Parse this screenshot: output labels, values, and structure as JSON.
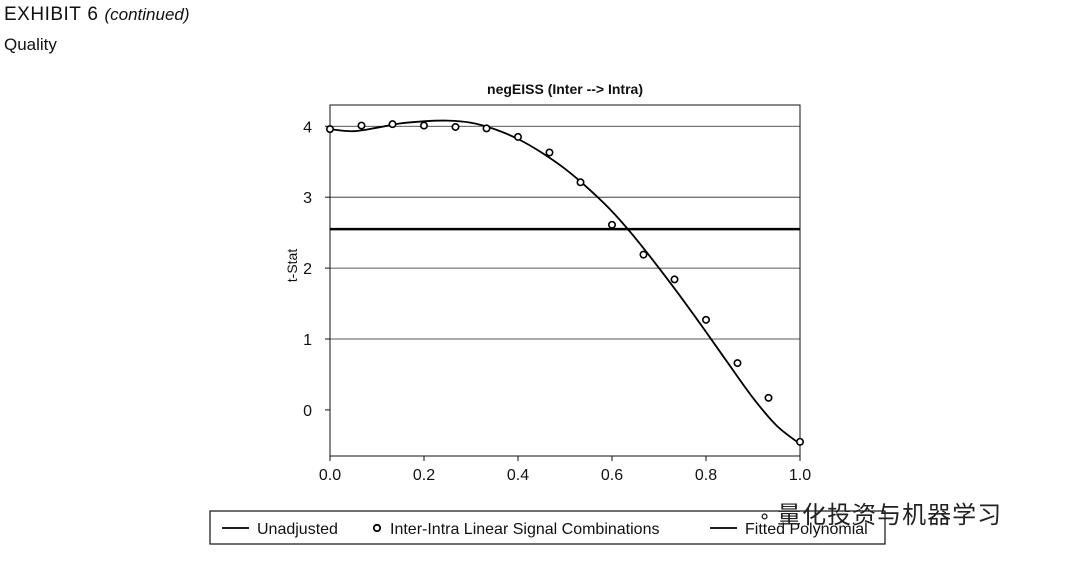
{
  "header": {
    "exhibit_label": "EXHIBIT",
    "exhibit_number": "6",
    "continued": "(continued)",
    "section": "Quality"
  },
  "watermark": {
    "text": "量化投资与机器学习",
    "icon": "wechat-icon"
  },
  "chart_data": {
    "type": "scatter",
    "title": "negEISS (Inter --> Intra)",
    "xlabel": "",
    "ylabel": "t-Stat",
    "xlim": [
      0.0,
      1.0
    ],
    "ylim": [
      -0.65,
      4.3
    ],
    "x_ticks": [
      "0.0",
      "0.2",
      "0.4",
      "0.6",
      "0.8",
      "1.0"
    ],
    "y_ticks": [
      "0",
      "1",
      "2",
      "3",
      "4"
    ],
    "grid": true,
    "legend_position": "bottom",
    "unadjusted": 2.55,
    "series": [
      {
        "name": "Inter-Intra Linear Signal Combinations",
        "x": [
          0.0,
          0.067,
          0.133,
          0.2,
          0.267,
          0.333,
          0.4,
          0.467,
          0.533,
          0.6,
          0.667,
          0.733,
          0.8,
          0.867,
          0.933,
          1.0
        ],
        "y": [
          3.96,
          4.01,
          4.03,
          4.01,
          3.99,
          3.97,
          3.85,
          3.63,
          3.21,
          2.61,
          2.19,
          1.84,
          1.27,
          0.66,
          0.17,
          -0.45
        ]
      }
    ],
    "fitted": {
      "x": [
        0.0,
        0.05,
        0.1,
        0.15,
        0.2,
        0.25,
        0.3,
        0.35,
        0.4,
        0.45,
        0.5,
        0.55,
        0.6,
        0.65,
        0.7,
        0.75,
        0.8,
        0.85,
        0.9,
        0.95,
        1.0
      ],
      "y": [
        3.96,
        3.93,
        3.98,
        4.04,
        4.07,
        4.08,
        4.05,
        3.96,
        3.82,
        3.63,
        3.4,
        3.12,
        2.8,
        2.42,
        2.0,
        1.56,
        1.1,
        0.63,
        0.17,
        -0.22,
        -0.48
      ]
    },
    "legend": [
      {
        "label": "Unadjusted",
        "marker": "line"
      },
      {
        "label": "Inter-Intra Linear Signal Combinations",
        "marker": "dot"
      },
      {
        "label": "Fitted Polynomial",
        "marker": "line"
      }
    ]
  }
}
